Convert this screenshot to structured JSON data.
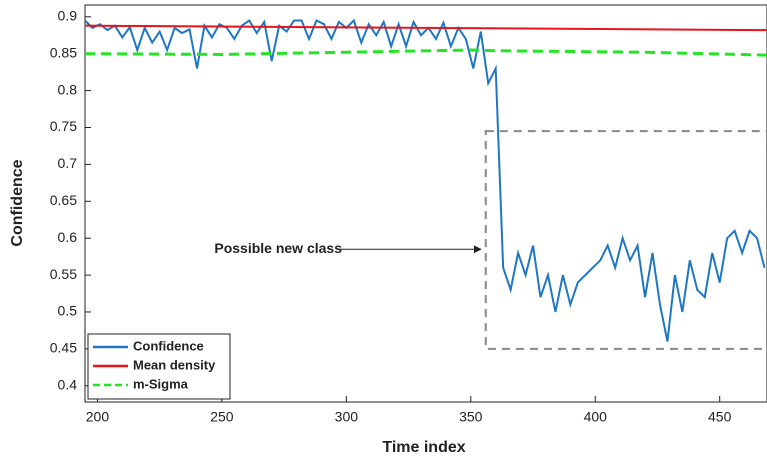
{
  "chart_data": {
    "type": "line",
    "xlabel": "Time index",
    "ylabel": "Confidence",
    "xlim": [
      195,
      469
    ],
    "ylim": [
      0.378,
      0.916
    ],
    "xticks": [
      200,
      250,
      300,
      350,
      400,
      450
    ],
    "yticks": [
      0.4,
      0.45,
      0.5,
      0.55,
      0.6,
      0.65,
      0.7,
      0.75,
      0.8,
      0.85,
      0.9
    ],
    "legend": "lower left",
    "series": [
      {
        "name": "Confidence",
        "color": "#1f77c4",
        "linestyle": "solid",
        "x": [
          195,
          198,
          201,
          204,
          207,
          210,
          213,
          216,
          219,
          222,
          225,
          228,
          231,
          234,
          237,
          240,
          243,
          246,
          249,
          252,
          255,
          258,
          261,
          264,
          267,
          270,
          273,
          276,
          279,
          282,
          285,
          288,
          291,
          294,
          297,
          300,
          303,
          306,
          309,
          312,
          315,
          318,
          321,
          324,
          327,
          330,
          333,
          336,
          339,
          342,
          345,
          348,
          351,
          354,
          357,
          360,
          363,
          366,
          369,
          372,
          375,
          378,
          381,
          384,
          387,
          390,
          393,
          396,
          399,
          402,
          405,
          408,
          411,
          414,
          417,
          420,
          423,
          426,
          429,
          432,
          435,
          438,
          441,
          444,
          447,
          450,
          453,
          456,
          459,
          462,
          465,
          468
        ],
        "values": [
          0.895,
          0.885,
          0.89,
          0.882,
          0.888,
          0.872,
          0.886,
          0.855,
          0.885,
          0.865,
          0.88,
          0.855,
          0.885,
          0.878,
          0.883,
          0.83,
          0.888,
          0.872,
          0.89,
          0.885,
          0.87,
          0.888,
          0.895,
          0.878,
          0.893,
          0.84,
          0.888,
          0.88,
          0.895,
          0.895,
          0.87,
          0.895,
          0.89,
          0.87,
          0.893,
          0.885,
          0.895,
          0.865,
          0.89,
          0.875,
          0.893,
          0.86,
          0.89,
          0.86,
          0.893,
          0.875,
          0.885,
          0.87,
          0.892,
          0.86,
          0.885,
          0.87,
          0.83,
          0.88,
          0.81,
          0.83,
          0.56,
          0.53,
          0.58,
          0.55,
          0.59,
          0.52,
          0.55,
          0.5,
          0.55,
          0.51,
          0.54,
          0.55,
          0.56,
          0.57,
          0.59,
          0.56,
          0.6,
          0.57,
          0.59,
          0.52,
          0.58,
          0.51,
          0.46,
          0.55,
          0.5,
          0.57,
          0.53,
          0.52,
          0.58,
          0.54,
          0.6,
          0.61,
          0.58,
          0.61,
          0.6,
          0.56
        ]
      },
      {
        "name": "Mean density",
        "color": "#e8141c",
        "linestyle": "solid",
        "x": [
          195,
          469
        ],
        "values": [
          0.888,
          0.882
        ]
      },
      {
        "name": "m-Sigma",
        "color": "#22e622",
        "linestyle": "dashed",
        "x": [
          195,
          250,
          300,
          350,
          360,
          420,
          469
        ],
        "values": [
          0.85,
          0.849,
          0.852,
          0.855,
          0.854,
          0.852,
          0.848
        ]
      }
    ],
    "highlight_box": {
      "x": [
        356,
        469
      ],
      "y": [
        0.45,
        0.745
      ]
    },
    "annotation": {
      "text": "Possible new class",
      "x": 354,
      "y": 0.585
    }
  }
}
